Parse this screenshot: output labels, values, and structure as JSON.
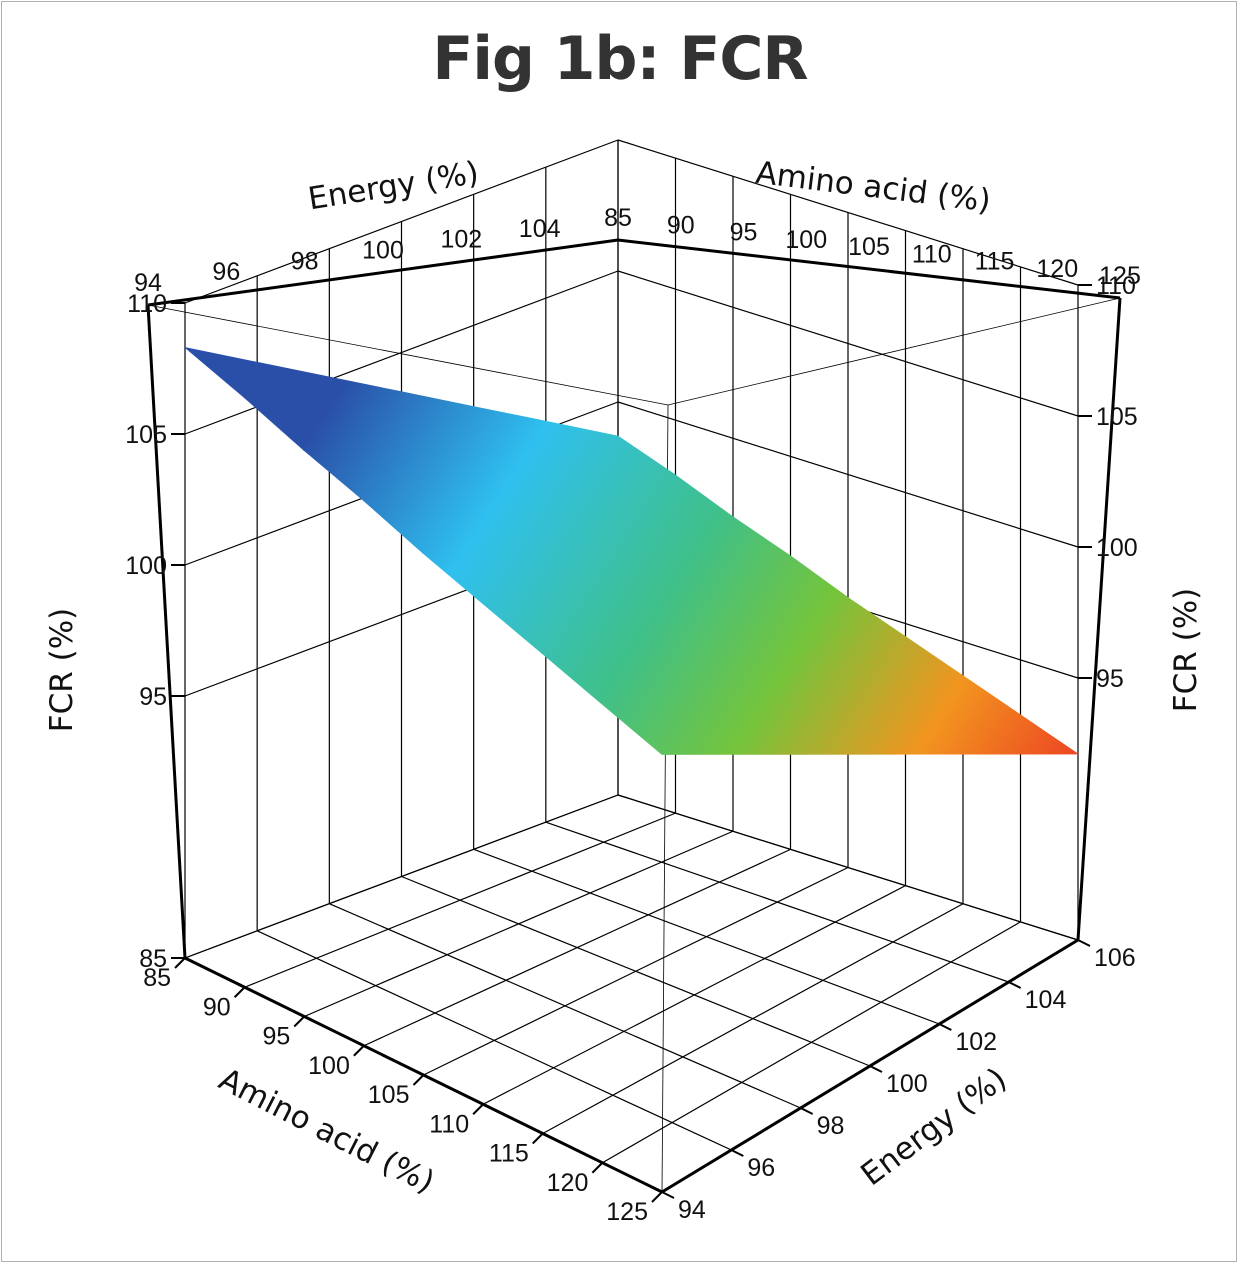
{
  "title": "Fig 1b: FCR",
  "chart_data": {
    "type": "surface",
    "title": "Fig 1b: FCR",
    "axes": {
      "energy": {
        "label": "Energy (%)",
        "range": [
          94,
          106
        ],
        "ticks": [
          94,
          96,
          98,
          100,
          102,
          104,
          106
        ]
      },
      "amino_acid": {
        "label": "Amino acid (%)",
        "range": [
          85,
          125
        ],
        "ticks": [
          85,
          90,
          95,
          100,
          105,
          110,
          115,
          120,
          125
        ]
      },
      "fcr": {
        "label": "FCR (%)",
        "range": [
          85,
          110
        ],
        "ticks": [
          85,
          95,
          100,
          105,
          110
        ]
      }
    },
    "grid": true,
    "colormap": [
      "#2a4fa8",
      "#2fc0ef",
      "#3fc08a",
      "#74c43c",
      "#f2941f",
      "#ea2424"
    ],
    "surface": {
      "energy": [
        94,
        96,
        98,
        100,
        102,
        104,
        106
      ],
      "amino_acid": [
        85,
        90,
        95,
        100,
        105,
        110,
        115,
        120,
        125
      ],
      "fcr": [
        [
          108.3,
          107.5,
          106.6,
          105.8,
          104.9,
          104.1,
          103.3,
          102.5,
          101.7
        ],
        [
          106.7,
          105.9,
          105.0,
          104.2,
          103.3,
          102.5,
          101.7,
          100.9,
          100.1
        ],
        [
          105.1,
          104.3,
          103.4,
          102.6,
          101.7,
          100.9,
          100.1,
          99.3,
          98.5
        ],
        [
          103.5,
          102.7,
          101.8,
          101.0,
          100.1,
          99.3,
          98.5,
          97.7,
          96.9
        ],
        [
          101.9,
          101.1,
          100.2,
          99.4,
          98.5,
          97.7,
          96.9,
          96.1,
          95.3
        ],
        [
          100.3,
          99.5,
          98.6,
          97.8,
          96.9,
          96.1,
          95.3,
          94.5,
          93.7
        ],
        [
          98.7,
          97.9,
          97.0,
          96.2,
          95.3,
          94.5,
          93.7,
          92.9,
          92.1
        ]
      ]
    }
  }
}
